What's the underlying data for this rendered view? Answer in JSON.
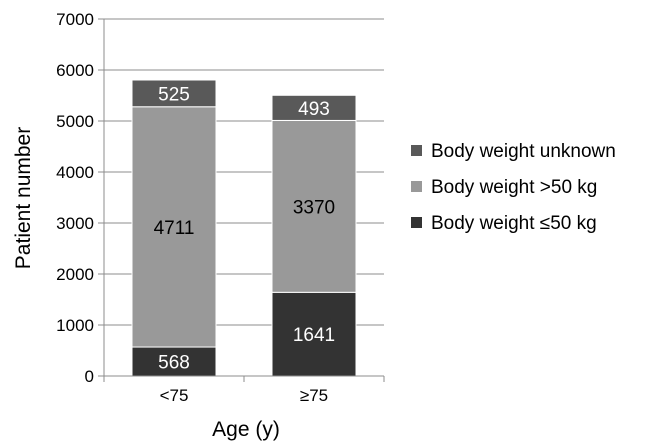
{
  "chart_data": {
    "type": "bar",
    "stacked": true,
    "title": "",
    "xlabel": "Age (y)",
    "ylabel": "Patient number",
    "categories": [
      "<75",
      "≥75"
    ],
    "ylim": [
      0,
      7000
    ],
    "yticks": [
      "0",
      "1000",
      "2000",
      "3000",
      "4000",
      "5000",
      "6000",
      "7000"
    ],
    "grid": true,
    "legend_position": "right",
    "series": [
      {
        "name": "Body weight ≤50 kg",
        "values": [
          568,
          1641
        ],
        "color": "#333333",
        "label_color": "#ffffff"
      },
      {
        "name": "Body weight >50 kg",
        "values": [
          4711,
          3370
        ],
        "color": "#999999",
        "label_color": "#000000"
      },
      {
        "name": "Body weight unknown",
        "values": [
          525,
          493
        ],
        "color": "#595959",
        "label_color": "#ffffff"
      }
    ],
    "legend_order": [
      "Body weight unknown",
      "Body weight >50 kg",
      "Body weight ≤50 kg"
    ]
  }
}
